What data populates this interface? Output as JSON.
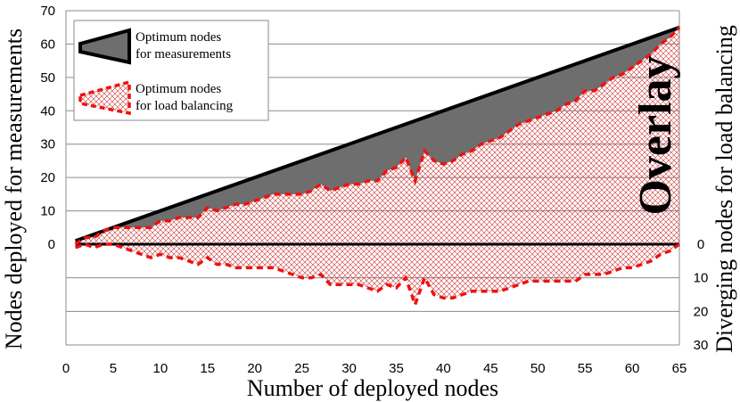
{
  "chart_data": {
    "type": "area",
    "title": "",
    "xlabel": "Number of deployed nodes",
    "ylabel_left": "Nodes deployed for measurements",
    "ylabel_right": "Diverging nodes for load balancing",
    "xlim": [
      0,
      65
    ],
    "ylim_left": [
      -30,
      70
    ],
    "ylim_right": [
      0,
      30
    ],
    "grid": true,
    "legend_position": "top-left",
    "overlay_label": "Overlay",
    "x_ticks": [
      "0",
      "5",
      "10",
      "15",
      "20",
      "25",
      "30",
      "35",
      "40",
      "45",
      "50",
      "55",
      "60",
      "65"
    ],
    "y_ticks_left": [
      "70",
      "60",
      "50",
      "40",
      "30",
      "20",
      "10",
      "0"
    ],
    "y_ticks_right": [
      "0",
      "10",
      "20",
      "30"
    ],
    "x_tick_values": [
      0,
      5,
      10,
      15,
      20,
      25,
      30,
      35,
      40,
      45,
      50,
      55,
      60,
      65
    ],
    "y_tick_values_left": [
      70,
      60,
      50,
      40,
      30,
      20,
      10,
      0
    ],
    "y_tick_values_right": [
      0,
      10,
      20,
      30
    ],
    "series": [
      {
        "name_line1": "Optimum nodes",
        "name_line2": "for measurements",
        "style": "solid-gray-area",
        "x": [
          1,
          65
        ],
        "y": [
          1,
          65
        ]
      },
      {
        "name_line1": "Optimum nodes",
        "name_line2": "for load balancing",
        "style": "dashed-red-hatched",
        "x": [
          1,
          2,
          3,
          4,
          5,
          6,
          7,
          8,
          9,
          10,
          11,
          12,
          13,
          14,
          15,
          16,
          17,
          18,
          19,
          20,
          21,
          22,
          23,
          24,
          25,
          26,
          27,
          28,
          29,
          30,
          31,
          32,
          33,
          34,
          35,
          36,
          37,
          38,
          39,
          40,
          41,
          42,
          43,
          44,
          45,
          46,
          47,
          48,
          49,
          50,
          51,
          52,
          53,
          54,
          55,
          56,
          57,
          58,
          59,
          60,
          61,
          62,
          63,
          64,
          65
        ],
        "y": [
          0,
          2,
          2,
          4,
          5,
          5,
          5,
          5,
          5,
          7,
          7,
          8,
          8,
          8,
          11,
          10,
          11,
          12,
          12,
          13,
          14,
          15,
          15,
          15,
          15,
          16,
          18,
          16,
          17,
          18,
          18,
          19,
          19,
          22,
          23,
          26,
          19,
          28,
          25,
          24,
          25,
          27,
          28,
          30,
          31,
          32,
          34,
          36,
          37,
          38,
          39,
          40,
          42,
          43,
          46,
          46,
          48,
          50,
          51,
          53,
          55,
          57,
          60,
          62,
          65
        ]
      }
    ],
    "diverging": {
      "x": [
        1,
        2,
        3,
        4,
        5,
        6,
        7,
        8,
        9,
        10,
        11,
        12,
        13,
        14,
        15,
        16,
        17,
        18,
        19,
        20,
        21,
        22,
        23,
        24,
        25,
        26,
        27,
        28,
        29,
        30,
        31,
        32,
        33,
        34,
        35,
        36,
        37,
        38,
        39,
        40,
        41,
        42,
        43,
        44,
        45,
        46,
        47,
        48,
        49,
        50,
        51,
        52,
        53,
        54,
        55,
        56,
        57,
        58,
        59,
        60,
        61,
        62,
        63,
        64,
        65
      ],
      "y": [
        1,
        0,
        1,
        0,
        0,
        1,
        2,
        3,
        4,
        3,
        4,
        4,
        5,
        6,
        4,
        6,
        6,
        7,
        7,
        7,
        7,
        7,
        8,
        9,
        10,
        10,
        9,
        12,
        12,
        12,
        12,
        13,
        14,
        12,
        13,
        10,
        18,
        10,
        15,
        16,
        16,
        15,
        14,
        14,
        14,
        14,
        13,
        12,
        11,
        11,
        11,
        11,
        11,
        11,
        9,
        9,
        9,
        8,
        7,
        7,
        6,
        5,
        3,
        2,
        0
      ]
    }
  }
}
